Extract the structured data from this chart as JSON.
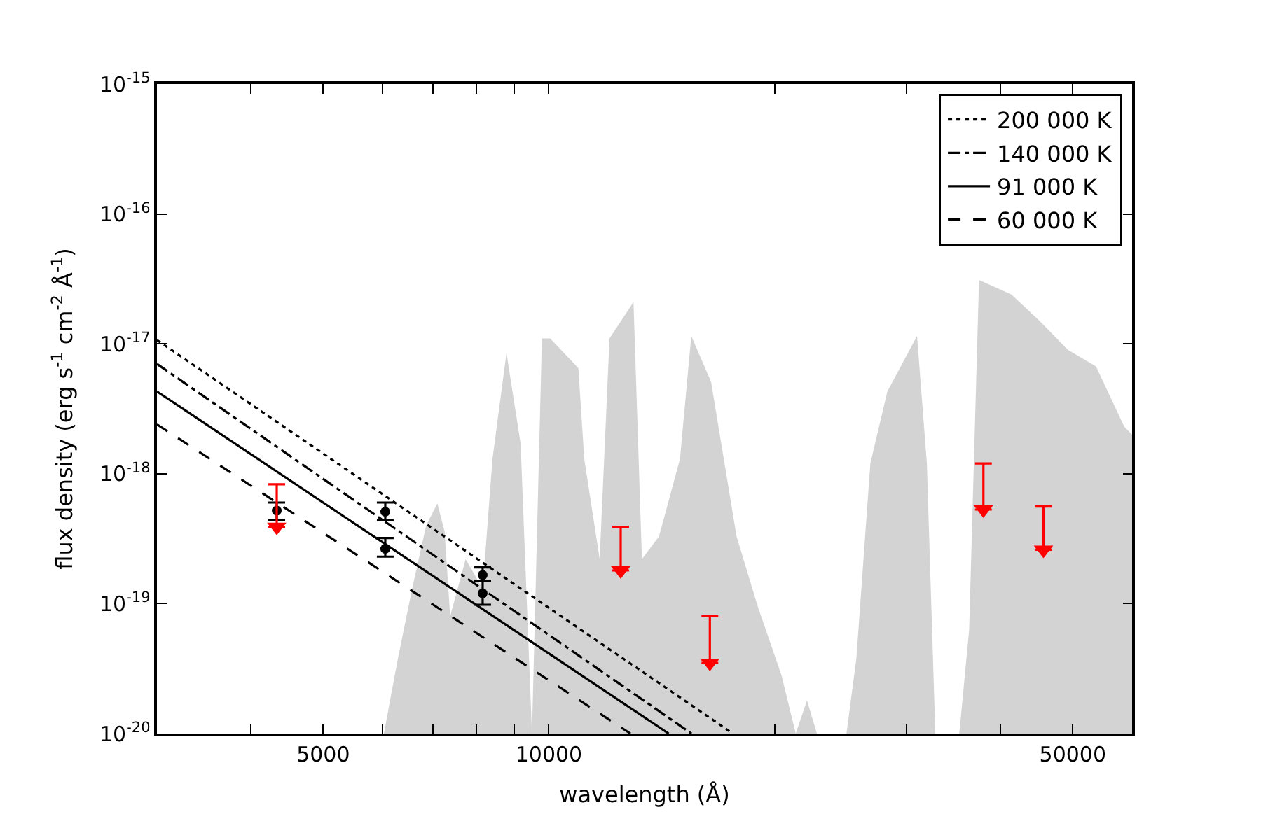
{
  "chart_data": {
    "type": "line",
    "xlabel": "wavelength (Å)",
    "ylabel": "flux density (erg s$^{-1}$ cm$^{-2}$ Å$^{-1}$)",
    "log": "xy",
    "legend": "top right",
    "xlim": [
      3000,
      60000
    ],
    "ylim": [
      1e-20,
      1e-15
    ],
    "xticks": [
      {
        "value": 4000,
        "label": null
      },
      {
        "value": 5000,
        "label": "5000"
      },
      {
        "value": 6000,
        "label": null
      },
      {
        "value": 7000,
        "label": null
      },
      {
        "value": 8000,
        "label": null
      },
      {
        "value": 9000,
        "label": null
      },
      {
        "value": 10000,
        "label": "10000"
      },
      {
        "value": 20000,
        "label": null
      },
      {
        "value": 30000,
        "label": null
      },
      {
        "value": 40000,
        "label": null
      },
      {
        "value": 50000,
        "label": "50000"
      }
    ],
    "yticks": [
      {
        "value": 1e-20,
        "label": "10$^{-20}$"
      },
      {
        "value": 1e-19,
        "label": "10$^{-19}$"
      },
      {
        "value": 1e-18,
        "label": "10$^{-18}$"
      },
      {
        "value": 1e-17,
        "label": "10$^{-17}$"
      },
      {
        "value": 1e-16,
        "label": "10$^{-16}$"
      },
      {
        "value": 1e-15,
        "label": "10$^{-15}$"
      }
    ],
    "series": [
      {
        "type": "area",
        "color": "#d3d3d3",
        "x": [
          6025,
          6290,
          6570,
          6860,
          7100,
          7260,
          7385,
          7745,
          8160,
          8410,
          8780,
          9170,
          9495,
          9790,
          10040,
          10950,
          11150,
          11690,
          12050,
          12970,
          13310,
          14030,
          14960,
          15490,
          16460,
          17800,
          18990,
          20440,
          21350,
          22100,
          22780,
          24950,
          25720,
          26850,
          28290,
          30990,
          31940,
          32780,
          35280,
          36370,
          37490,
          41410,
          45160,
          49250,
          53700,
          58580,
          60000
        ],
        "values": [
          1e-20,
          3.8e-20,
          1.3e-19,
          4e-19,
          5.9e-19,
          3.6e-19,
          8e-20,
          2.2e-19,
          1.3e-19,
          1.3e-18,
          8.5e-18,
          1.7e-18,
          1e-20,
          1.1e-17,
          1.1e-17,
          6.5e-18,
          1.3e-18,
          2.2e-19,
          1.1e-17,
          2.1e-17,
          2.2e-19,
          3.3e-19,
          1.3e-18,
          1.15e-17,
          5.1e-18,
          3.3e-19,
          9.6e-20,
          2.8e-20,
          1e-20,
          1.8e-20,
          1e-20,
          1e-20,
          3.8e-20,
          1.2e-18,
          4.3e-18,
          1.15e-17,
          1.2e-18,
          1e-20,
          1e-20,
          6.3e-20,
          3.1e-17,
          2.4e-17,
          1.5e-17,
          9e-18,
          6.7e-18,
          2.3e-18,
          2e-18
        ]
      },
      {
        "name": "200 000 K",
        "color": "#000000",
        "line_style": "dotted",
        "x": [
          3000,
          17600
        ],
        "values": [
          1.07e-17,
          1e-20
        ]
      },
      {
        "name": "140 000 K",
        "color": "#000000",
        "line_style": "dashdot",
        "x": [
          3000,
          15500
        ],
        "values": [
          7e-18,
          1e-20
        ]
      },
      {
        "name": "91 000 K",
        "color": "#000000",
        "line_style": "solid",
        "x": [
          3000,
          14450
        ],
        "values": [
          4.3e-18,
          1e-20
        ]
      },
      {
        "name": "60 000 K",
        "color": "#000000",
        "line_style": "dashed",
        "x": [
          3000,
          12850
        ],
        "values": [
          2.4e-18,
          1e-20
        ]
      },
      {
        "type": "scatter",
        "color": "#000000",
        "marker": "circle",
        "x": [
          4335,
          6050,
          6050,
          8160,
          8160
        ],
        "values": [
          5.2e-19,
          5.1e-19,
          2.64e-19,
          1.66e-19,
          1.2e-19
        ],
        "errors": [
          [
            4.4e-19,
            6e-19
          ],
          [
            4.4e-19,
            6e-19
          ],
          [
            2.3e-19,
            3.2e-19
          ],
          [
            1.5e-19,
            1.9e-19
          ],
          [
            9.8e-20,
            1.5e-19
          ]
        ]
      },
      {
        "type": "scatter",
        "color": "#ff0000",
        "marker": "triangle-down",
        "x": [
          4335,
          12470,
          16400,
          38000,
          45700
        ],
        "values": [
          3.9e-19,
          1.8e-19,
          3.5e-20,
          5.3e-19,
          2.6e-19
        ],
        "errors": [
          [
            3.9e-19,
            8.3e-19
          ],
          [
            1.8e-19,
            3.9e-19
          ],
          [
            3.5e-20,
            8e-20
          ],
          [
            5.3e-19,
            1.2e-18
          ],
          [
            2.6e-19,
            5.6e-19
          ]
        ]
      }
    ]
  }
}
